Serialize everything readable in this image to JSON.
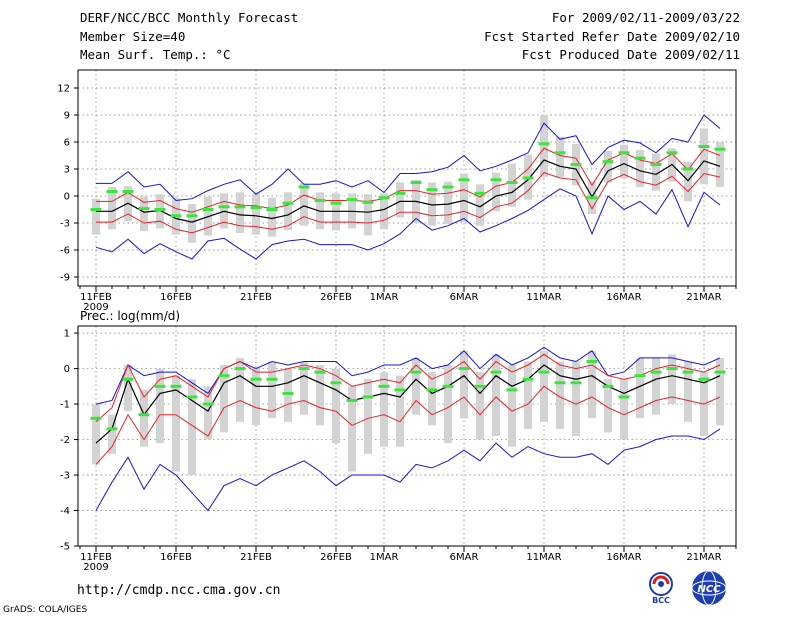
{
  "header": {
    "title": "DERF/NCC/BCC Monthly Forecast",
    "member_size": "Member Size=40",
    "variable": "Mean Surf. Temp.: °C",
    "period": "For 2009/02/11-2009/03/22",
    "started": "Fcst Started Refer Date 2009/02/10",
    "produced": "Fcst Produced Date 2009/02/11"
  },
  "footer": {
    "url": "http://cmdp.ncc.cma.gov.cn",
    "grads": "GrADS: COLA/IGES",
    "logo1": "BCC",
    "logo2": "NCC"
  },
  "colors": {
    "ensemble_mean": "#000000",
    "spread": "#e8232a",
    "envelope": "#1515d8",
    "quartile_box": "#d3d3d3",
    "median": "#3ee43e"
  },
  "x_ticks": {
    "labels": [
      "11FEB",
      "16FEB",
      "21FEB",
      "26FEB",
      "1MAR",
      "6MAR",
      "11MAR",
      "16MAR",
      "21MAR"
    ],
    "days": [
      0,
      5,
      10,
      15,
      18,
      23,
      28,
      33,
      38
    ],
    "year": "2009"
  },
  "chart_data": [
    {
      "type": "line",
      "title": "Mean Surf. Temp.: °C",
      "xlabel": "",
      "ylabel": "°C",
      "ylim": [
        -10,
        14
      ],
      "yticks": [
        12,
        9,
        6,
        3,
        0,
        -3,
        -6,
        -9
      ],
      "x": [
        0,
        1,
        2,
        3,
        4,
        5,
        6,
        7,
        8,
        9,
        10,
        11,
        12,
        13,
        14,
        15,
        16,
        17,
        18,
        19,
        20,
        21,
        22,
        23,
        24,
        25,
        26,
        27,
        28,
        29,
        30,
        31,
        32,
        33,
        34,
        35,
        36,
        37,
        38,
        39
      ],
      "series": [
        {
          "name": "ensemble mean",
          "values": [
            -1.7,
            -1.7,
            -0.8,
            -1.8,
            -1.6,
            -2.5,
            -2.9,
            -2.3,
            -1.7,
            -2.1,
            -2.2,
            -2.5,
            -2.1,
            -1.1,
            -1.7,
            -1.7,
            -1.7,
            -1.8,
            -1.5,
            -0.6,
            -0.6,
            -1.0,
            -0.9,
            -0.5,
            -1.2,
            0.0,
            0.4,
            1.8,
            4.0,
            3.3,
            3.0,
            -0.1,
            2.8,
            3.6,
            2.8,
            2.4,
            3.5,
            1.7,
            3.9,
            3.3
          ]
        },
        {
          "name": "mean + spread",
          "values": [
            -0.6,
            -0.6,
            0.4,
            -0.7,
            -0.5,
            -1.4,
            -1.8,
            -1.2,
            -0.6,
            -1.0,
            -1.1,
            -1.4,
            -1.0,
            0.1,
            -0.5,
            -0.5,
            -0.5,
            -0.6,
            -0.3,
            0.6,
            0.6,
            0.2,
            0.3,
            0.7,
            -0.1,
            1.1,
            1.5,
            3.0,
            5.3,
            4.5,
            4.2,
            1.2,
            4.0,
            4.8,
            4.0,
            3.6,
            4.7,
            2.9,
            5.2,
            4.5
          ]
        },
        {
          "name": "mean - spread",
          "values": [
            -2.9,
            -2.9,
            -2.0,
            -3.0,
            -2.8,
            -3.7,
            -4.1,
            -3.5,
            -2.9,
            -3.3,
            -3.4,
            -3.7,
            -3.3,
            -2.3,
            -2.9,
            -2.9,
            -2.9,
            -3.0,
            -2.7,
            -1.8,
            -1.8,
            -2.2,
            -2.1,
            -1.7,
            -2.4,
            -1.2,
            -0.8,
            0.6,
            2.6,
            2.0,
            1.8,
            -1.4,
            1.6,
            2.4,
            1.6,
            1.2,
            2.2,
            0.5,
            2.5,
            2.1
          ]
        },
        {
          "name": "ensemble max",
          "values": [
            1.4,
            1.4,
            2.7,
            1.0,
            1.3,
            -0.5,
            -0.3,
            0.6,
            1.3,
            1.8,
            0.2,
            1.3,
            3.0,
            1.3,
            1.3,
            1.7,
            1.0,
            1.7,
            0.4,
            2.5,
            2.5,
            2.7,
            3.2,
            4.5,
            2.8,
            3.3,
            4.0,
            4.8,
            8.1,
            6.3,
            6.7,
            3.5,
            5.4,
            6.2,
            5.9,
            4.8,
            6.4,
            6.0,
            9.0,
            7.5
          ]
        },
        {
          "name": "ensemble min",
          "values": [
            -5.7,
            -6.2,
            -4.8,
            -6.4,
            -5.3,
            -6.2,
            -7.0,
            -5.0,
            -4.7,
            -5.9,
            -7.0,
            -5.4,
            -5.0,
            -4.8,
            -5.4,
            -5.4,
            -5.4,
            -6.0,
            -5.3,
            -4.2,
            -2.5,
            -3.8,
            -3.3,
            -2.5,
            -4.0,
            -3.3,
            -2.5,
            -1.6,
            -0.4,
            0.8,
            0.0,
            -4.2,
            0.0,
            -1.5,
            -0.6,
            -2.0,
            0.7,
            -3.4,
            0.4,
            -1.0
          ]
        },
        {
          "name": "median",
          "values": [
            -1.5,
            0.5,
            0.5,
            -1.4,
            -1.5,
            -2.2,
            -2.2,
            -1.5,
            -1.2,
            -1.2,
            -1.3,
            -1.5,
            -0.8,
            1.0,
            -0.5,
            -0.8,
            -0.4,
            -0.7,
            -0.2,
            0.3,
            1.5,
            0.7,
            1.0,
            1.8,
            0.3,
            1.8,
            1.5,
            2.0,
            5.8,
            4.8,
            3.5,
            -0.2,
            3.8,
            4.8,
            4.2,
            3.5,
            4.8,
            3.0,
            5.5,
            5.2
          ]
        },
        {
          "name": "upper quartile",
          "values": [
            -0.3,
            1.0,
            1.1,
            0.0,
            0.2,
            -0.2,
            -0.9,
            -0.1,
            0.3,
            0.4,
            0.3,
            -0.2,
            0.4,
            1.4,
            0.4,
            0.3,
            0.3,
            0.2,
            0.3,
            1.5,
            1.8,
            1.5,
            1.6,
            2.5,
            1.3,
            2.6,
            3.6,
            4.6,
            8.9,
            6.6,
            5.8,
            1.6,
            5.0,
            5.7,
            5.1,
            4.7,
            5.3,
            3.8,
            7.5,
            6.0
          ]
        },
        {
          "name": "lower quartile",
          "values": [
            -4.3,
            -3.7,
            -2.8,
            -3.9,
            -3.6,
            -4.3,
            -5.2,
            -4.4,
            -3.6,
            -4.1,
            -4.3,
            -4.5,
            -3.8,
            -3.3,
            -3.7,
            -3.8,
            -3.6,
            -4.4,
            -3.7,
            -2.4,
            -3.0,
            -3.3,
            -3.1,
            -2.9,
            -3.3,
            -1.7,
            -1.2,
            -0.4,
            2.1,
            2.1,
            1.2,
            -2.0,
            1.5,
            2.0,
            1.0,
            0.6,
            1.6,
            -0.6,
            1.3,
            1.0
          ]
        }
      ]
    },
    {
      "type": "line",
      "title": "Prec.: log(mm/d)",
      "xlabel": "",
      "ylabel": "log(mm/d)",
      "ylim": [
        -5,
        1.2
      ],
      "yticks": [
        1,
        0,
        -1,
        -2,
        -3,
        -4,
        -5
      ],
      "x": [
        0,
        1,
        2,
        3,
        4,
        5,
        6,
        7,
        8,
        9,
        10,
        11,
        12,
        13,
        14,
        15,
        16,
        17,
        18,
        19,
        20,
        21,
        22,
        23,
        24,
        25,
        26,
        27,
        28,
        29,
        30,
        31,
        32,
        33,
        34,
        35,
        36,
        37,
        38,
        39
      ],
      "series": [
        {
          "name": "ensemble mean",
          "values": [
            -2.1,
            -1.7,
            -0.3,
            -1.3,
            -0.7,
            -0.6,
            -0.9,
            -1.2,
            -0.4,
            -0.2,
            -0.5,
            -0.5,
            -0.4,
            -0.2,
            -0.4,
            -0.6,
            -0.9,
            -0.8,
            -0.7,
            -0.8,
            -0.3,
            -0.7,
            -0.5,
            -0.2,
            -0.7,
            -0.2,
            -0.5,
            -0.3,
            0.1,
            -0.2,
            -0.3,
            -0.2,
            -0.5,
            -0.7,
            -0.5,
            -0.3,
            -0.2,
            -0.3,
            -0.4,
            -0.2
          ]
        },
        {
          "name": "mean + spread",
          "values": [
            -1.5,
            -1.1,
            0.1,
            -0.8,
            -0.3,
            -0.2,
            -0.5,
            -0.8,
            0.0,
            0.2,
            -0.1,
            -0.1,
            0.0,
            0.1,
            0.0,
            -0.2,
            -0.5,
            -0.4,
            -0.3,
            -0.4,
            0.1,
            -0.3,
            -0.1,
            0.2,
            -0.3,
            0.2,
            -0.1,
            0.1,
            0.4,
            0.1,
            0.0,
            0.1,
            -0.2,
            -0.3,
            -0.2,
            0.0,
            0.1,
            0.0,
            -0.1,
            0.1
          ]
        },
        {
          "name": "mean - spread",
          "values": [
            -2.7,
            -2.2,
            -1.3,
            -2.0,
            -1.3,
            -1.3,
            -1.6,
            -1.9,
            -1.1,
            -0.9,
            -1.1,
            -1.2,
            -1.0,
            -0.9,
            -1.1,
            -1.2,
            -1.6,
            -1.4,
            -1.3,
            -1.5,
            -0.9,
            -1.3,
            -1.1,
            -0.8,
            -1.3,
            -0.8,
            -1.2,
            -1.0,
            -0.5,
            -0.8,
            -1.0,
            -0.8,
            -1.1,
            -1.3,
            -1.1,
            -0.9,
            -0.8,
            -0.9,
            -1.0,
            -0.8
          ]
        },
        {
          "name": "ensemble max",
          "values": [
            -1.0,
            -0.9,
            0.1,
            -0.2,
            -0.1,
            -0.1,
            -0.4,
            -0.7,
            0.0,
            0.2,
            0.0,
            0.2,
            0.1,
            0.2,
            0.2,
            0.2,
            -0.2,
            -0.1,
            0.1,
            0.1,
            0.3,
            0.0,
            0.1,
            0.5,
            0.0,
            0.4,
            0.1,
            0.3,
            0.6,
            0.3,
            0.2,
            0.5,
            -0.2,
            -0.1,
            0.3,
            0.3,
            0.3,
            0.2,
            0.1,
            0.3
          ]
        },
        {
          "name": "ensemble min",
          "values": [
            -4.0,
            -3.2,
            -2.5,
            -3.4,
            -2.7,
            -3.0,
            -3.5,
            -4.0,
            -3.3,
            -3.1,
            -3.3,
            -3.0,
            -2.8,
            -2.6,
            -2.9,
            -3.3,
            -3.0,
            -3.0,
            -3.0,
            -3.2,
            -2.7,
            -2.8,
            -2.6,
            -2.3,
            -2.6,
            -2.1,
            -2.5,
            -2.2,
            -2.4,
            -2.5,
            -2.5,
            -2.4,
            -2.7,
            -2.3,
            -2.2,
            -2.0,
            -1.9,
            -1.9,
            -2.0,
            -1.7
          ]
        },
        {
          "name": "median",
          "values": [
            -1.4,
            -1.7,
            -0.3,
            -1.3,
            -0.5,
            -0.5,
            -0.8,
            -1.0,
            -0.2,
            0.0,
            -0.3,
            -0.3,
            -0.7,
            0.0,
            -0.1,
            -0.4,
            -0.9,
            -0.8,
            -0.5,
            -0.6,
            -0.1,
            -0.6,
            -0.5,
            0.0,
            -0.5,
            -0.1,
            -0.6,
            -0.3,
            -0.1,
            -0.4,
            -0.4,
            0.2,
            -0.5,
            -0.8,
            -0.2,
            -0.1,
            0.0,
            -0.1,
            -0.3,
            -0.1
          ]
        },
        {
          "name": "upper quartile",
          "values": [
            -1.0,
            -1.3,
            0.1,
            -0.6,
            0.0,
            -0.2,
            -0.3,
            -0.5,
            0.1,
            0.3,
            0.0,
            0.2,
            0.0,
            0.2,
            0.1,
            0.0,
            -0.5,
            -0.3,
            -0.1,
            -0.2,
            0.3,
            -0.1,
            0.1,
            0.5,
            -0.1,
            0.4,
            0.1,
            0.2,
            0.5,
            0.2,
            0.2,
            0.5,
            -0.3,
            -0.3,
            0.3,
            0.3,
            0.4,
            0.2,
            -0.1,
            0.3
          ]
        },
        {
          "name": "lower quartile",
          "values": [
            -2.7,
            -2.4,
            -1.2,
            -2.2,
            -2.1,
            -2.9,
            -3.0,
            -2.0,
            -1.8,
            -1.5,
            -1.6,
            -1.4,
            -1.5,
            -1.3,
            -1.6,
            -2.1,
            -2.9,
            -2.4,
            -2.2,
            -2.2,
            -1.3,
            -1.6,
            -2.1,
            -1.4,
            -2.0,
            -1.9,
            -2.2,
            -1.7,
            -1.5,
            -1.7,
            -1.9,
            -1.4,
            -1.8,
            -2.0,
            -1.4,
            -1.3,
            -1.0,
            -1.5,
            -1.9,
            -1.6
          ]
        }
      ]
    }
  ]
}
